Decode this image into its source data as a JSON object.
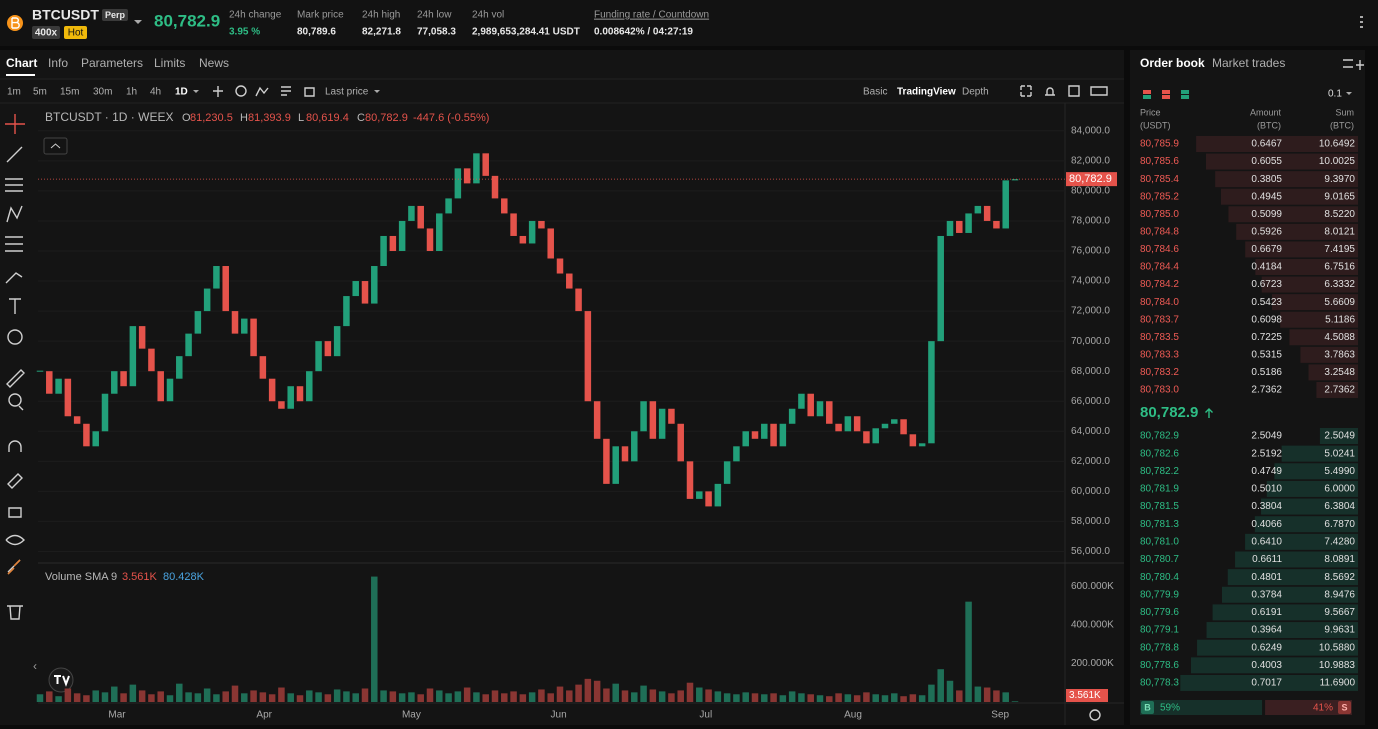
{
  "header": {
    "symbol": "BTCUSDT",
    "badge": "Perp",
    "leverage": "400x",
    "hot": "Hot",
    "last_price": "80,782.9",
    "stats": [
      {
        "label": "24h change",
        "value": "3.95 %"
      },
      {
        "label": "Mark price",
        "value": "80,789.6"
      },
      {
        "label": "24h high",
        "value": "82,271.8"
      },
      {
        "label": "24h low",
        "value": "77,058.3"
      },
      {
        "label": "24h vol",
        "value": "2,989,653,284.41 USDT"
      },
      {
        "label": "Funding rate / Countdown",
        "value": "0.008642% / 04:27:19"
      }
    ]
  },
  "tabs": [
    "Chart",
    "Info",
    "Parameters",
    "Limits",
    "News"
  ],
  "intervals": [
    "1m",
    "5m",
    "15m",
    "30m",
    "1h",
    "4h",
    "1D"
  ],
  "price_type": "Last price",
  "views": [
    "Basic",
    "TradingView",
    "Depth"
  ],
  "chart_data": [
    {
      "type": "candlestick",
      "legend": {
        "symbol": "BTCUSDT · 1D · WEEX",
        "ohlc": [
          [
            "O",
            "81,230.5"
          ],
          [
            "H",
            "81,393.9"
          ],
          [
            "L",
            "80,619.4"
          ],
          [
            "C",
            "80,782.9"
          ]
        ],
        "change": "-447.6 (-0.55%)"
      },
      "months": [
        "Mar",
        "Apr",
        "May",
        "Jun",
        "Jul",
        "Aug",
        "Sep"
      ],
      "close": [
        68000,
        66500,
        67500,
        65000,
        64500,
        63000,
        64000,
        66500,
        68000,
        67000,
        71000,
        69500,
        68000,
        66000,
        67500,
        69000,
        70500,
        72000,
        73500,
        75000,
        72000,
        70500,
        71500,
        69000,
        67500,
        66000,
        65500,
        67000,
        66000,
        68000,
        70000,
        69000,
        71000,
        73000,
        74000,
        72500,
        75000,
        77000,
        76000,
        78000,
        79000,
        77500,
        76000,
        78500,
        79500,
        81500,
        80500,
        82500,
        81000,
        79500,
        78500,
        77000,
        76500,
        78000,
        77500,
        75500,
        74500,
        73500,
        72000,
        66000,
        63500,
        60500,
        63000,
        62000,
        64000,
        66000,
        63500,
        65500,
        64500,
        62000,
        59500,
        60000,
        59000,
        60500,
        62000,
        63000,
        64000,
        63500,
        64500,
        63000,
        64500,
        65500,
        66500,
        65000,
        66000,
        64500,
        64000,
        65000,
        64000,
        63200,
        64200,
        64500,
        64800,
        63800,
        63000,
        63200,
        70000,
        77000,
        78000,
        77200,
        78500,
        79000,
        78000,
        77500,
        80700,
        80782.9
      ],
      "up_color": "#22a07a",
      "down_color": "#e5534b",
      "last_price": 80782.9,
      "last_price_label": "80,782.9",
      "ylim": [
        55300,
        85850
      ],
      "yticks": [
        {
          "value": 56000,
          "label": "56,000.0"
        },
        {
          "value": 58000,
          "label": "58,000.0"
        },
        {
          "value": 60000,
          "label": "60,000.0"
        },
        {
          "value": 62000,
          "label": "62,000.0"
        },
        {
          "value": 64000,
          "label": "64,000.0"
        },
        {
          "value": 66000,
          "label": "66,000.0"
        },
        {
          "value": 68000,
          "label": "68,000.0"
        },
        {
          "value": 70000,
          "label": "70,000.0"
        },
        {
          "value": 72000,
          "label": "72,000.0"
        },
        {
          "value": 74000,
          "label": "74,000.0"
        },
        {
          "value": 76000,
          "label": "76,000.0"
        },
        {
          "value": 78000,
          "label": "78,000.0"
        },
        {
          "value": 80000,
          "label": "80,000.0"
        },
        {
          "value": 82000,
          "label": "82,000.0"
        },
        {
          "value": 84000,
          "label": "84,000.0"
        }
      ],
      "grid": true
    },
    {
      "type": "bar",
      "legend": {
        "name": "Volume SMA 9",
        "volume": "3.561K",
        "sma": "80.428K"
      },
      "values": [
        40,
        55,
        30,
        70,
        45,
        35,
        60,
        50,
        80,
        45,
        90,
        60,
        40,
        55,
        35,
        95,
        50,
        45,
        70,
        40,
        55,
        85,
        45,
        60,
        50,
        40,
        75,
        45,
        35,
        60,
        50,
        40,
        65,
        55,
        45,
        70,
        650,
        60,
        55,
        45,
        50,
        40,
        70,
        60,
        45,
        55,
        75,
        50,
        40,
        60,
        45,
        55,
        40,
        50,
        65,
        45,
        80,
        60,
        90,
        120,
        110,
        70,
        95,
        60,
        50,
        85,
        65,
        55,
        45,
        60,
        100,
        75,
        65,
        55,
        45,
        40,
        50,
        45,
        40,
        45,
        35,
        55,
        45,
        40,
        35,
        30,
        45,
        40,
        35,
        50,
        40,
        35,
        45,
        30,
        40,
        35,
        90,
        170,
        110,
        60,
        520,
        80,
        75,
        60,
        50,
        3.561
      ],
      "last_value_label": "3.561K",
      "ylim": [
        0,
        710
      ],
      "yticks": [
        {
          "value": 200,
          "label": "200.000K"
        },
        {
          "value": 400,
          "label": "400.000K"
        },
        {
          "value": 600,
          "label": "600.000K"
        }
      ]
    }
  ],
  "order_book": {
    "tabs": [
      "Order book",
      "Market trades"
    ],
    "precision": "0.1",
    "columns": [
      [
        "Price",
        "(USDT)"
      ],
      [
        "Amount",
        "(BTC)"
      ],
      [
        "Sum",
        "(BTC)"
      ]
    ],
    "asks": [
      [
        "80,785.9",
        "0.6467",
        "10.6492"
      ],
      [
        "80,785.6",
        "0.6055",
        "10.0025"
      ],
      [
        "80,785.4",
        "0.3805",
        "9.3970"
      ],
      [
        "80,785.2",
        "0.4945",
        "9.0165"
      ],
      [
        "80,785.0",
        "0.5099",
        "8.5220"
      ],
      [
        "80,784.8",
        "0.5926",
        "8.0121"
      ],
      [
        "80,784.6",
        "0.6679",
        "7.4195"
      ],
      [
        "80,784.4",
        "0.4184",
        "6.7516"
      ],
      [
        "80,784.2",
        "0.6723",
        "6.3332"
      ],
      [
        "80,784.0",
        "0.5423",
        "5.6609"
      ],
      [
        "80,783.7",
        "0.6098",
        "5.1186"
      ],
      [
        "80,783.5",
        "0.7225",
        "4.5088"
      ],
      [
        "80,783.3",
        "0.5315",
        "3.7863"
      ],
      [
        "80,783.2",
        "0.5186",
        "3.2548"
      ],
      [
        "80,783.0",
        "2.7362",
        "2.7362"
      ]
    ],
    "mid_price": "80,782.9",
    "bids": [
      [
        "80,782.9",
        "2.5049",
        "2.5049"
      ],
      [
        "80,782.6",
        "2.5192",
        "5.0241"
      ],
      [
        "80,782.2",
        "0.4749",
        "5.4990"
      ],
      [
        "80,781.9",
        "0.5010",
        "6.0000"
      ],
      [
        "80,781.5",
        "0.3804",
        "6.3804"
      ],
      [
        "80,781.3",
        "0.4066",
        "6.7870"
      ],
      [
        "80,781.0",
        "0.6410",
        "7.4280"
      ],
      [
        "80,780.7",
        "0.6611",
        "8.0891"
      ],
      [
        "80,780.4",
        "0.4801",
        "8.5692"
      ],
      [
        "80,779.9",
        "0.3784",
        "8.9476"
      ],
      [
        "80,779.6",
        "0.6191",
        "9.5667"
      ],
      [
        "80,779.1",
        "0.3964",
        "9.9631"
      ],
      [
        "80,778.8",
        "0.6249",
        "10.5880"
      ],
      [
        "80,778.6",
        "0.4003",
        "10.9883"
      ],
      [
        "80,778.3",
        "0.7017",
        "11.6900"
      ]
    ],
    "ratio": {
      "buy_tag": "B",
      "buy": 59,
      "buy_label": "59%",
      "sell": 41,
      "sell_label": "41%",
      "sell_tag": "S"
    }
  }
}
